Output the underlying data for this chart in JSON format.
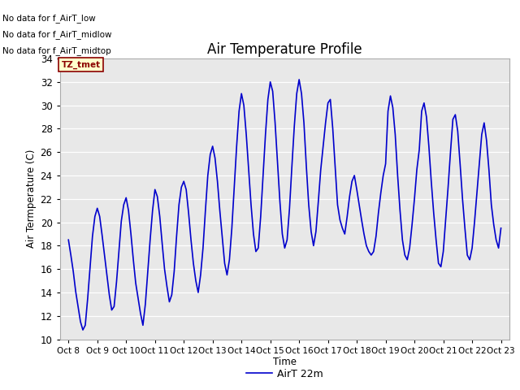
{
  "title": "Air Temperature Profile",
  "ylabel": "Air Termperature (C)",
  "xlabel": "Time",
  "ylim": [
    10,
    34
  ],
  "yticks": [
    10,
    12,
    14,
    16,
    18,
    20,
    22,
    24,
    26,
    28,
    30,
    32,
    34
  ],
  "line_color": "#0000cc",
  "line_label": "AirT 22m",
  "fig_bg_color": "#ffffff",
  "plot_bg_color": "#e8e8e8",
  "no_data_texts": [
    "No data for f_AirT_low",
    "No data for f_AirT_midlow",
    "No data for f_AirT_midtop"
  ],
  "tz_label": "TZ_tmet",
  "xtick_labels": [
    "Oct 8",
    "Oct 9",
    "Oct 10",
    "Oct 11",
    "Oct 12",
    "Oct 13",
    "Oct 14",
    "Oct 15",
    "Oct 16",
    "Oct 17",
    "Oct 18",
    "Oct 19",
    "Oct 20",
    "Oct 21",
    "Oct 22",
    "Oct 23"
  ],
  "time_data": [
    0.0,
    0.083,
    0.167,
    0.25,
    0.333,
    0.417,
    0.5,
    0.583,
    0.667,
    0.75,
    0.833,
    0.917,
    1.0,
    1.083,
    1.167,
    1.25,
    1.333,
    1.417,
    1.5,
    1.583,
    1.667,
    1.75,
    1.833,
    1.917,
    2.0,
    2.083,
    2.167,
    2.25,
    2.333,
    2.417,
    2.5,
    2.583,
    2.667,
    2.75,
    2.833,
    2.917,
    3.0,
    3.083,
    3.167,
    3.25,
    3.333,
    3.417,
    3.5,
    3.583,
    3.667,
    3.75,
    3.833,
    3.917,
    4.0,
    4.083,
    4.167,
    4.25,
    4.333,
    4.417,
    4.5,
    4.583,
    4.667,
    4.75,
    4.833,
    4.917,
    5.0,
    5.083,
    5.167,
    5.25,
    5.333,
    5.417,
    5.5,
    5.583,
    5.667,
    5.75,
    5.833,
    5.917,
    6.0,
    6.083,
    6.167,
    6.25,
    6.333,
    6.417,
    6.5,
    6.583,
    6.667,
    6.75,
    6.833,
    6.917,
    7.0,
    7.083,
    7.167,
    7.25,
    7.333,
    7.417,
    7.5,
    7.583,
    7.667,
    7.75,
    7.833,
    7.917,
    8.0,
    8.083,
    8.167,
    8.25,
    8.333,
    8.417,
    8.5,
    8.583,
    8.667,
    8.75,
    8.833,
    8.917,
    9.0,
    9.083,
    9.167,
    9.25,
    9.333,
    9.417,
    9.5,
    9.583,
    9.667,
    9.75,
    9.833,
    9.917,
    10.0,
    10.083,
    10.167,
    10.25,
    10.333,
    10.417,
    10.5,
    10.583,
    10.667,
    10.75,
    10.833,
    10.917,
    11.0,
    11.083,
    11.167,
    11.25,
    11.333,
    11.417,
    11.5,
    11.583,
    11.667,
    11.75,
    11.833,
    11.917,
    12.0,
    12.083,
    12.167,
    12.25,
    12.333,
    12.417,
    12.5,
    12.583,
    12.667,
    12.75,
    12.833,
    12.917,
    13.0,
    13.083,
    13.167,
    13.25,
    13.333,
    13.417,
    13.5,
    13.583,
    13.667,
    13.75,
    13.833,
    13.917,
    14.0,
    14.083,
    14.167,
    14.25,
    14.333,
    14.417,
    14.5,
    14.583,
    14.667,
    14.75,
    14.833,
    14.917,
    15.0
  ],
  "temp_data": [
    18.5,
    17.2,
    15.8,
    14.1,
    12.8,
    11.5,
    10.8,
    11.2,
    13.5,
    16.2,
    18.8,
    20.5,
    21.2,
    20.5,
    18.9,
    17.2,
    15.5,
    13.8,
    12.5,
    12.8,
    14.9,
    17.5,
    20.1,
    21.5,
    22.1,
    21.0,
    19.0,
    16.8,
    14.8,
    13.5,
    12.2,
    11.2,
    13.0,
    15.8,
    18.5,
    21.0,
    22.8,
    22.2,
    20.5,
    18.2,
    16.0,
    14.5,
    13.2,
    13.8,
    15.8,
    18.8,
    21.5,
    23.0,
    23.5,
    22.8,
    20.8,
    18.5,
    16.5,
    15.0,
    14.0,
    15.5,
    17.8,
    21.0,
    24.0,
    25.8,
    26.5,
    25.5,
    23.5,
    21.0,
    18.8,
    16.5,
    15.5,
    16.8,
    19.5,
    23.0,
    26.5,
    29.5,
    31.0,
    30.0,
    27.5,
    24.5,
    21.5,
    19.0,
    17.5,
    17.8,
    20.5,
    24.0,
    27.5,
    30.5,
    32.0,
    31.2,
    28.5,
    25.2,
    21.8,
    19.0,
    17.8,
    18.5,
    21.2,
    24.8,
    28.2,
    31.0,
    32.2,
    31.0,
    28.5,
    24.8,
    21.5,
    19.2,
    18.0,
    19.2,
    21.8,
    24.5,
    26.5,
    28.5,
    30.2,
    30.5,
    28.0,
    24.8,
    21.5,
    20.2,
    19.5,
    19.0,
    20.5,
    22.2,
    23.5,
    24.0,
    22.8,
    21.5,
    20.2,
    19.0,
    18.0,
    17.5,
    17.2,
    17.5,
    18.8,
    20.8,
    22.5,
    24.0,
    25.0,
    29.5,
    30.8,
    29.8,
    27.5,
    24.0,
    21.0,
    18.5,
    17.2,
    16.8,
    17.8,
    19.8,
    22.0,
    24.5,
    26.2,
    29.5,
    30.2,
    29.0,
    26.5,
    23.5,
    20.8,
    18.5,
    16.5,
    16.2,
    17.5,
    20.2,
    23.0,
    26.0,
    28.8,
    29.2,
    27.8,
    25.0,
    22.0,
    19.5,
    17.2,
    16.8,
    17.8,
    20.0,
    22.5,
    25.0,
    27.5,
    28.5,
    27.0,
    24.5,
    21.5,
    19.8,
    18.5,
    17.8,
    19.5
  ]
}
